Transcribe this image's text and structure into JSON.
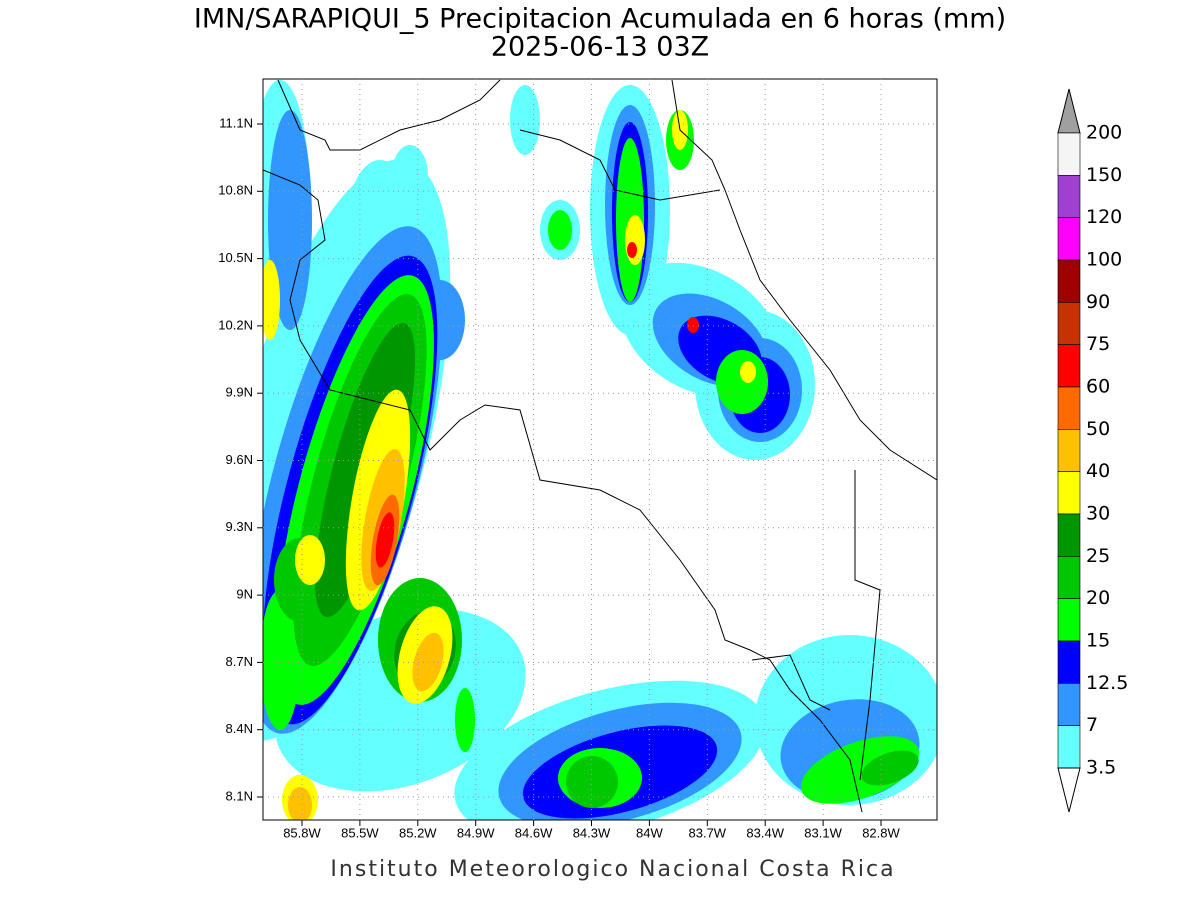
{
  "header": {
    "title": "IMN/SARAPIQUI_5 Precipitacion Acumulada en 6 horas (mm)",
    "subtitle": "2025-06-13 03Z"
  },
  "map": {
    "lat_labels": [
      "11.1N",
      "10.8N",
      "10.5N",
      "10.2N",
      "9.9N",
      "9.6N",
      "9.3N",
      "9N",
      "8.7N",
      "8.4N",
      "8.1N"
    ],
    "lon_labels": [
      "85.8W",
      "85.5W",
      "85.2W",
      "84.9W",
      "84.6W",
      "84.3W",
      "84W",
      "83.7W",
      "83.4W",
      "83.1W",
      "82.8W"
    ],
    "grid": true
  },
  "colorbar": {
    "levels": [
      200,
      150,
      120,
      100,
      90,
      75,
      60,
      50,
      40,
      30,
      25,
      20,
      15,
      12.5,
      7,
      3.5
    ],
    "colors": [
      "#f5f5f5",
      "#a040d0",
      "#ff00ff",
      "#a00000",
      "#c83200",
      "#ff0000",
      "#ff6a00",
      "#ffc000",
      "#ffff00",
      "#009600",
      "#00c800",
      "#00ff00",
      "#0000ff",
      "#3296ff",
      "#64ffff"
    ],
    "over_color": "#a0a0a0",
    "under_color": "#ffffff"
  },
  "footer": {
    "text": "Instituto Meteorologico Nacional Costa Rica"
  }
}
